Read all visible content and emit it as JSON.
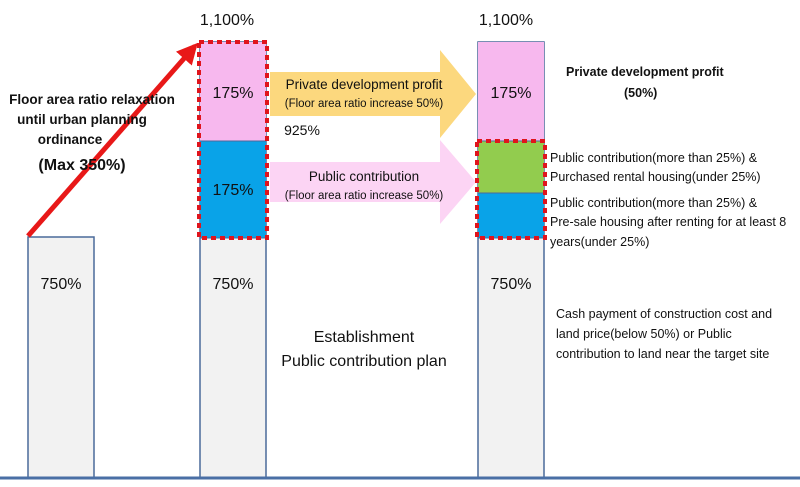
{
  "left": {
    "label_lines": [
      "Floor area ratio relaxation",
      "until urban planning",
      "ordinance"
    ],
    "max_label": "(Max 350%)",
    "base": "750%"
  },
  "middle": {
    "total": "1,100%",
    "top": "175%",
    "mid": "175%",
    "base": "750%",
    "side_value": "925%"
  },
  "arrows": {
    "private_title": "Private development profit",
    "private_sub": "(Floor area ratio increase 50%)",
    "public_title": "Public contribution",
    "public_sub": "(Floor area ratio increase 50%)"
  },
  "establishment": {
    "line1": "Establishment",
    "line2": "Public contribution plan"
  },
  "right": {
    "total": "1,100%",
    "top": "175%",
    "base": "750%",
    "profit_title": "Private development profit",
    "profit_pct": "(50%)",
    "pub1_lines": [
      "Public contribution(more than 25%) &",
      "Purchased rental housing(under 25%)"
    ],
    "pub2_lines": [
      "Public contribution(more than 25%) &",
      "Pre-sale housing after renting for at least 8",
      "years(under 25%)"
    ],
    "cash_lines": [
      "Cash payment of construction cost and",
      "land price(below 50%) or Public",
      "contribution to land near the target site"
    ]
  },
  "colors": {
    "bar_fill": "#f2f2f2",
    "bar_stroke": "#4a6a9a",
    "pink": "#f7b8ee",
    "blue": "#09a3e8",
    "green": "#92cc4e",
    "dash": "#e0141c",
    "red_arrow": "#e81818",
    "orange_arrow": "#fcd87e",
    "pink_arrow": "#fcd4f4",
    "ground": "#4a6fa5"
  }
}
